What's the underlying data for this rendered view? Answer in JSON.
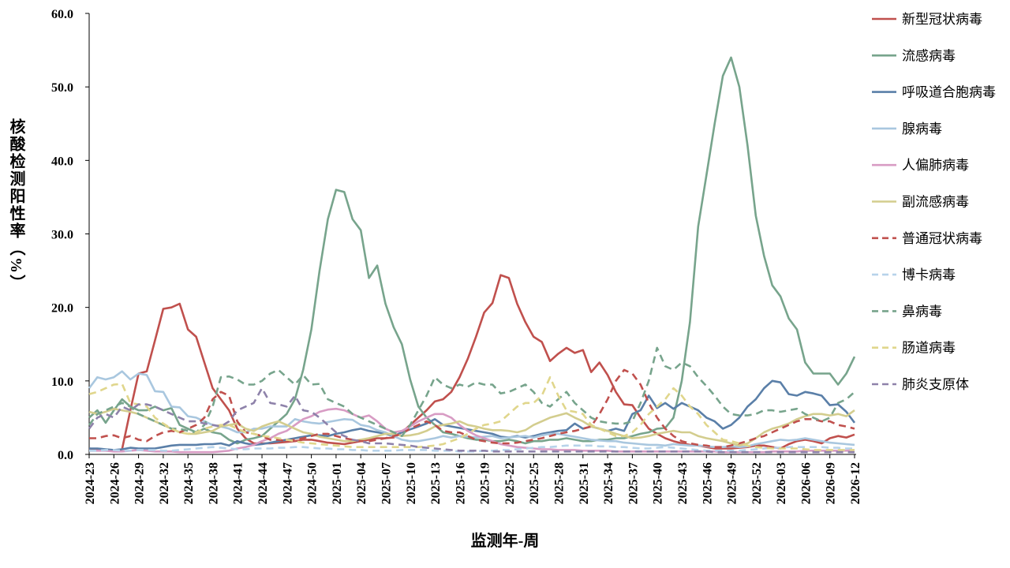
{
  "chart_data": {
    "type": "line",
    "y_label": "核酸检测阳性率（%）",
    "x_label": "监测年-周",
    "categories": [
      "2024-23",
      null,
      null,
      "2024-26",
      null,
      null,
      "2024-29",
      null,
      null,
      "2024-32",
      null,
      null,
      "2024-35",
      null,
      null,
      "2024-38",
      null,
      null,
      "2024-41",
      null,
      null,
      "2024-44",
      null,
      null,
      "2024-47",
      null,
      null,
      "2024-50",
      null,
      null,
      "2025-01",
      null,
      null,
      "2025-04",
      null,
      null,
      "2025-07",
      null,
      null,
      "2025-10",
      null,
      null,
      "2025-13",
      null,
      null,
      "2025-16",
      null,
      null,
      "2025-19",
      null,
      null,
      "2025-22",
      null,
      null,
      "2025-25",
      null,
      null,
      "2025-28",
      null,
      null,
      "2025-31",
      null,
      null,
      "2025-34",
      null,
      null,
      "2025-37",
      null,
      null,
      "2025-40",
      null,
      null,
      "2025-43",
      null,
      null,
      "2025-46",
      null,
      null,
      "2025-49",
      null,
      null,
      "2025-52",
      null,
      null,
      "2026-03",
      null,
      null,
      "2026-06",
      null,
      null,
      "2026-09",
      null,
      null,
      "2026-12"
    ],
    "ylim": [
      0,
      60
    ],
    "yticks": [
      {
        "value": 0,
        "label": "0.0"
      },
      {
        "value": 10,
        "label": "10.0"
      },
      {
        "value": 20,
        "label": "20.0"
      },
      {
        "value": 30,
        "label": "30.0"
      },
      {
        "value": 40,
        "label": "40.0"
      },
      {
        "value": 50,
        "label": "50.0"
      },
      {
        "value": 60,
        "label": "60.0"
      }
    ],
    "grid": false,
    "legend": "right",
    "series": [
      {
        "name": "新型冠状病毒",
        "color": "#c0504d",
        "dashed": false,
        "values": [
          0.8,
          0.7,
          0.6,
          0.5,
          0.7,
          6,
          11,
          11.3,
          15.5,
          19.8,
          20,
          20.5,
          17,
          16,
          12.5,
          9,
          7.5,
          6,
          3.5,
          2.2,
          1.5,
          1.5,
          1.5,
          1.6,
          1.7,
          1.8,
          2,
          2,
          1.8,
          1.6,
          1.5,
          1.4,
          1.6,
          1.8,
          2,
          2.2,
          2.2,
          2.3,
          3,
          4,
          5,
          6,
          7.2,
          7.5,
          8.5,
          10.5,
          13,
          16,
          19.3,
          20.6,
          24.4,
          24,
          20.5,
          18,
          16,
          15.3,
          12.7,
          13.7,
          14.5,
          13.8,
          14.2,
          11.2,
          12.5,
          10.8,
          8.5,
          6.8,
          6.7,
          5,
          3.5,
          2.8,
          2.2,
          1.8,
          1.5,
          1.3,
          1.2,
          1,
          0.8,
          0.8,
          0.8,
          0.9,
          1,
          1.2,
          1.2,
          1,
          0.8,
          1.4,
          1.8,
          2,
          1.8,
          1.5,
          2.2,
          2.5,
          2.3,
          2.7
        ]
      },
      {
        "name": "流感病毒",
        "color": "#77a48c",
        "dashed": false,
        "values": [
          5,
          6,
          4.3,
          6,
          7.5,
          6.5,
          6,
          6,
          6.5,
          6,
          6.3,
          4,
          3.5,
          3,
          3.5,
          3,
          2.8,
          2,
          1.5,
          2,
          2.2,
          2.5,
          3.5,
          4.5,
          5.5,
          7.5,
          11.5,
          17,
          25,
          32,
          36,
          35.7,
          32,
          30.5,
          24,
          25.7,
          20.5,
          17.3,
          15,
          10.2,
          6.5,
          5,
          4,
          3,
          2.8,
          2.5,
          2.2,
          2,
          2,
          1.8,
          1.8,
          2,
          1.8,
          1.5,
          1.8,
          1.8,
          2,
          2,
          2.2,
          2,
          1.8,
          1.8,
          2,
          2,
          2.2,
          2.2,
          2.5,
          2.8,
          3,
          3.5,
          3.6,
          5,
          10,
          18,
          31,
          38,
          45,
          51.5,
          54,
          50,
          42,
          32.5,
          27,
          23,
          21.5,
          18.5,
          17,
          12.5,
          11,
          11,
          11,
          9.5,
          11,
          13.3
        ]
      },
      {
        "name": "呼吸道合胞病毒",
        "color": "#5a7fa8",
        "dashed": false,
        "values": [
          0.8,
          0.8,
          0.7,
          0.6,
          0.7,
          0.9,
          0.8,
          0.8,
          0.8,
          1,
          1.2,
          1.3,
          1.3,
          1.3,
          1.4,
          1.4,
          1.5,
          1.2,
          1.8,
          1.5,
          1.3,
          1.4,
          1.6,
          1.8,
          2,
          2.2,
          2.4,
          2.6,
          2.6,
          2.5,
          2.8,
          3,
          3.3,
          3.5,
          3.2,
          3,
          2.8,
          2.5,
          3,
          3.4,
          3.8,
          4.2,
          4.8,
          4,
          3.8,
          3.6,
          3.4,
          3.2,
          3,
          2.8,
          2.4,
          2.3,
          2.5,
          2.3,
          2.5,
          2.8,
          3,
          3.2,
          3.3,
          4.2,
          3.5,
          3.8,
          3.5,
          3.2,
          3.5,
          3.2,
          5.5,
          6,
          8,
          6.3,
          7,
          6.2,
          7,
          6.5,
          6,
          5,
          4.5,
          3.5,
          4,
          5,
          6.5,
          7.5,
          9,
          10,
          9.8,
          8.2,
          8,
          8.5,
          8.3,
          8,
          6.7,
          6.8,
          5.8,
          4.3
        ]
      },
      {
        "name": "腺病毒",
        "color": "#a9c7df",
        "dashed": false,
        "values": [
          9,
          10.5,
          10.2,
          10.5,
          11.3,
          10.2,
          11,
          10.8,
          8.6,
          8.5,
          6.5,
          6.4,
          5.2,
          5,
          4.5,
          4,
          3.8,
          3.5,
          3,
          3,
          3.5,
          3.5,
          3.8,
          3.8,
          3.8,
          4.8,
          4.5,
          4.3,
          4.2,
          4.4,
          4.6,
          4.8,
          4.7,
          4,
          3.8,
          3.3,
          3,
          2.5,
          2,
          1.8,
          1.8,
          2,
          2.2,
          2.5,
          2.3,
          2.5,
          2.4,
          2.3,
          2.4,
          2.5,
          2.2,
          2.3,
          2.4,
          2.5,
          2.3,
          2.6,
          2.8,
          2.8,
          2.6,
          2.4,
          2.2,
          2,
          1.9,
          1.8,
          1.8,
          1.6,
          1.5,
          1.4,
          1.3,
          1.3,
          1.2,
          1.4,
          1.3,
          1.2,
          1.2,
          1.1,
          1,
          1,
          1.1,
          1,
          1.1,
          1.4,
          1.6,
          1.8,
          2,
          1.9,
          2,
          2.2,
          2,
          1.8,
          1.6,
          1.5,
          1.4,
          1.3
        ]
      },
      {
        "name": "人偏肺病毒",
        "color": "#d89cc4",
        "dashed": false,
        "values": [
          0.5,
          0.5,
          0.5,
          0.4,
          0.4,
          0.5,
          0.6,
          0.5,
          0.4,
          0.4,
          0.4,
          0.3,
          0.3,
          0.3,
          0.3,
          0.3,
          0.4,
          0.5,
          0.8,
          1,
          1.3,
          1.8,
          2.2,
          2.8,
          3.2,
          4,
          4.8,
          5.2,
          5.8,
          6.1,
          6.2,
          6,
          5.5,
          5,
          5.3,
          4.5,
          3.5,
          3,
          3.2,
          3.8,
          4.5,
          5,
          5.5,
          5.5,
          5,
          4,
          3.2,
          2.6,
          2.2,
          1.8,
          1.4,
          1.2,
          1,
          0.9,
          0.8,
          0.7,
          0.7,
          0.6,
          0.6,
          0.6,
          0.5,
          0.5,
          0.5,
          0.5,
          0.4,
          0.4,
          0.4,
          0.4,
          0.4,
          0.4,
          0.4,
          0.4,
          0.4,
          0.4,
          0.4,
          0.4,
          0.4,
          0.3,
          0.3,
          0.3,
          0.3,
          0.3,
          0.3,
          0.4,
          0.4,
          0.4,
          0.4,
          0.5,
          0.5,
          0.5,
          0.5,
          0.5,
          0.5,
          0.6
        ]
      },
      {
        "name": "副流感病毒",
        "color": "#d3cd8e",
        "dashed": false,
        "values": [
          5.8,
          5.5,
          5.8,
          6.2,
          6,
          5.8,
          5.5,
          5,
          4.5,
          4,
          3.5,
          3,
          2.8,
          2.8,
          3,
          3.2,
          3.8,
          4,
          4.2,
          3.5,
          3.2,
          3.8,
          4.2,
          4.5,
          4,
          3.5,
          3,
          2.8,
          2.4,
          2.2,
          2,
          1.8,
          1.8,
          2,
          2.2,
          2.5,
          2.8,
          2.8,
          2.5,
          2.6,
          2.8,
          3.2,
          3.8,
          4,
          4.2,
          4.5,
          4,
          3.8,
          3.5,
          3.3,
          3.3,
          3.2,
          3,
          3.3,
          4,
          4.5,
          5,
          5.3,
          5.6,
          5,
          4.5,
          3.8,
          3.5,
          3.2,
          2.8,
          2.5,
          2.2,
          2.3,
          2.5,
          2.8,
          3,
          3.2,
          3,
          3,
          2.5,
          2.2,
          2,
          1.8,
          1.5,
          1.2,
          1.5,
          2.2,
          3,
          3.5,
          3.8,
          4.2,
          4.8,
          5.2,
          5.5,
          5.5,
          5.3,
          5.5,
          5.2,
          6
        ]
      },
      {
        "name": "普通冠状病毒",
        "color": "#c0504d",
        "dashed": true,
        "values": [
          2.2,
          2.2,
          2.5,
          2.6,
          2.2,
          2.5,
          2,
          1.8,
          2.5,
          3,
          3.2,
          3,
          3.5,
          4,
          5,
          7.5,
          8.5,
          8,
          4.5,
          3,
          2.8,
          2.5,
          2,
          2,
          1.8,
          2,
          2.2,
          2.5,
          2.8,
          2.8,
          2.5,
          2.2,
          2,
          1.8,
          1.8,
          2,
          2.2,
          2.5,
          2.8,
          3.5,
          4,
          4.5,
          4,
          3.2,
          3,
          3,
          2.5,
          2,
          1.8,
          1.6,
          1.5,
          1.5,
          1.6,
          1.8,
          2,
          2.2,
          2.5,
          2.8,
          3,
          3.2,
          3.5,
          3.8,
          5.5,
          7.5,
          10,
          11.5,
          11,
          9.5,
          7,
          5,
          3.5,
          2.5,
          1.8,
          1.5,
          1.3,
          1.2,
          1,
          1,
          1.2,
          1.5,
          1.8,
          2.2,
          2.5,
          3,
          3.5,
          4,
          4.5,
          4.8,
          4.8,
          4.5,
          4.5,
          4,
          3.8,
          3.5
        ]
      },
      {
        "name": "博卡病毒",
        "color": "#b7d3ea",
        "dashed": true,
        "values": [
          0.5,
          0.5,
          0.6,
          0.6,
          0.5,
          0.5,
          0.6,
          0.6,
          0.6,
          0.5,
          0.5,
          0.6,
          0.7,
          0.8,
          0.9,
          1,
          0.9,
          0.8,
          0.7,
          0.7,
          0.8,
          0.8,
          0.8,
          0.9,
          0.9,
          1,
          1,
          0.9,
          0.8,
          0.8,
          0.7,
          0.7,
          0.6,
          0.6,
          0.5,
          0.5,
          0.5,
          0.5,
          0.6,
          0.6,
          0.6,
          0.6,
          0.5,
          0.5,
          0.5,
          0.4,
          0.4,
          0.4,
          0.5,
          0.5,
          0.6,
          0.6,
          0.7,
          0.8,
          0.9,
          1,
          1,
          1.1,
          1.2,
          1.2,
          1.2,
          1.2,
          1.1,
          1.1,
          1,
          1,
          0.9,
          0.8,
          0.8,
          0.9,
          1,
          0.9,
          0.8,
          0.7,
          0.6,
          0.5,
          0.5,
          0.5,
          0.5,
          0.5,
          0.6,
          0.7,
          0.8,
          0.9,
          0.9,
          1,
          1,
          1,
          1,
          1,
          0.9,
          0.9,
          0.8,
          0.8
        ]
      },
      {
        "name": "鼻病毒",
        "color": "#77a48c",
        "dashed": true,
        "values": [
          4,
          5.5,
          6,
          6.5,
          7,
          6.5,
          5.5,
          5,
          4.5,
          4,
          3.5,
          3.5,
          3.2,
          3,
          4,
          6.5,
          10.5,
          10.6,
          10.2,
          9.5,
          9.5,
          10,
          11,
          11.5,
          10.5,
          9.5,
          10.8,
          9.5,
          9.6,
          7.5,
          7,
          6.5,
          5.5,
          5,
          4.5,
          4,
          3.5,
          3,
          2.5,
          4,
          6,
          8,
          10.5,
          9.5,
          9,
          9.5,
          9.2,
          9.8,
          9.5,
          9.5,
          8.3,
          8.5,
          9,
          9.5,
          8.5,
          7,
          6.5,
          7.5,
          8.5,
          7,
          6,
          5,
          4.5,
          4.3,
          4.2,
          4.2,
          4.5,
          7,
          10,
          14.5,
          12,
          11.5,
          12.5,
          12,
          10.5,
          9.3,
          8,
          6.5,
          5.5,
          5.3,
          5.3,
          5.5,
          6,
          6,
          5.8,
          6,
          6.2,
          5.5,
          5,
          4.5,
          5,
          7,
          7.5,
          8.5
        ]
      },
      {
        "name": "肠道病毒",
        "color": "#e0d68c",
        "dashed": true,
        "values": [
          8.2,
          8.5,
          9,
          9.5,
          9.6,
          7,
          6.8,
          6.5,
          5,
          4.2,
          3.5,
          3,
          2.8,
          3,
          3.5,
          3.8,
          4,
          4,
          3.5,
          3,
          2.8,
          2.5,
          2.4,
          2.2,
          2,
          1.8,
          1.6,
          1.5,
          1.4,
          1.3,
          1.2,
          1.1,
          1,
          1,
          1,
          1,
          1,
          1,
          1,
          1,
          1,
          1.1,
          1.2,
          1.4,
          1.8,
          2.2,
          2.8,
          3.5,
          4,
          4.2,
          4.5,
          5.5,
          6.5,
          7,
          7,
          8,
          10.5,
          8,
          6,
          5.8,
          5.5,
          4,
          3.5,
          3,
          2.5,
          2.5,
          3,
          4,
          5.5,
          6.5,
          7.5,
          9,
          8,
          6.5,
          5.5,
          4,
          3,
          2,
          1.8,
          1.5,
          1.2,
          1,
          0.9,
          0.8,
          0.8,
          0.8,
          0.8,
          0.7,
          0.6,
          0.6,
          0.6,
          0.6,
          0.6,
          0.6
        ]
      },
      {
        "name": "肺炎支原体",
        "color": "#8e82aa",
        "dashed": true,
        "values": [
          3.5,
          5,
          5.5,
          5,
          6.5,
          6,
          6.8,
          6.8,
          6.5,
          6,
          5.5,
          5,
          4.5,
          4.5,
          4.2,
          4,
          3.8,
          4.5,
          6,
          6.5,
          7,
          9,
          7,
          6.8,
          6.5,
          8,
          6,
          5.8,
          5,
          4,
          3,
          2.5,
          2,
          1.8,
          1.5,
          1.5,
          1.5,
          1.4,
          1.3,
          1.2,
          1,
          0.9,
          0.8,
          0.7,
          0.6,
          0.5,
          0.5,
          0.5,
          0.5,
          0.4,
          0.4,
          0.4,
          0.4,
          0.4,
          0.4,
          0.4,
          0.4,
          0.4,
          0.4,
          0.4,
          0.4,
          0.4,
          0.4,
          0.4,
          0.4,
          0.4,
          0.4,
          0.4,
          0.4,
          0.4,
          0.4,
          0.4,
          0.4,
          0.4,
          0.4,
          0.4,
          0.3,
          0.3,
          0.3,
          0.3,
          0.3,
          0.3,
          0.3,
          0.3,
          0.3,
          0.3,
          0.3,
          0.3,
          0.3,
          0.3,
          0.3,
          0.3,
          0.3,
          0.3
        ]
      }
    ]
  }
}
